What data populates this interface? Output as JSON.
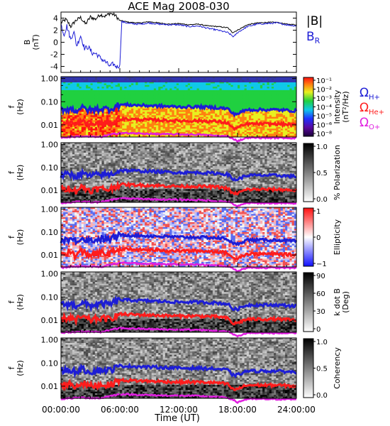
{
  "chart_data": {
    "type": "spectrogram",
    "title": "ACE Mag 2008-030",
    "xlabel": "Time (UT)",
    "x_tick_labels": [
      "00:00:00",
      "06:00:00",
      "12:00:00",
      "18:00:00",
      "24:00:00"
    ],
    "x_range_hours": [
      0,
      24
    ],
    "line_series": {
      "H+": [
        [
          0,
          0.045
        ],
        [
          1,
          0.05
        ],
        [
          1.5,
          0.04
        ],
        [
          2,
          0.055
        ],
        [
          3,
          0.042
        ],
        [
          4,
          0.05
        ],
        [
          5,
          0.048
        ],
        [
          5.5,
          0.06
        ],
        [
          6,
          0.075
        ],
        [
          8,
          0.07
        ],
        [
          10,
          0.065
        ],
        [
          12,
          0.06
        ],
        [
          14,
          0.06
        ],
        [
          16,
          0.055
        ],
        [
          17,
          0.05
        ],
        [
          17.5,
          0.03
        ],
        [
          18,
          0.03
        ],
        [
          19,
          0.045
        ],
        [
          22,
          0.045
        ],
        [
          24,
          0.04
        ]
      ],
      "He+": [
        [
          0,
          0.011
        ],
        [
          1,
          0.013
        ],
        [
          1.5,
          0.009
        ],
        [
          2,
          0.014
        ],
        [
          3,
          0.01
        ],
        [
          4,
          0.012
        ],
        [
          5,
          0.011
        ],
        [
          5.5,
          0.015
        ],
        [
          6,
          0.018
        ],
        [
          8,
          0.017
        ],
        [
          10,
          0.016
        ],
        [
          12,
          0.015
        ],
        [
          14,
          0.015
        ],
        [
          16,
          0.014
        ],
        [
          17,
          0.012
        ],
        [
          17.5,
          0.007
        ],
        [
          18,
          0.0075
        ],
        [
          19,
          0.011
        ],
        [
          22,
          0.011
        ],
        [
          24,
          0.01
        ]
      ],
      "O+": [
        [
          0,
          0.0028
        ],
        [
          2,
          0.0032
        ],
        [
          4,
          0.003
        ],
        [
          6,
          0.0045
        ],
        [
          10,
          0.004
        ],
        [
          14,
          0.0038
        ],
        [
          17,
          0.0032
        ],
        [
          18,
          0.002
        ],
        [
          19,
          0.0028
        ],
        [
          24,
          0.0027
        ]
      ]
    },
    "panels": [
      {
        "type": "line",
        "ylabel_lines": [
          "B",
          "(nT)"
        ],
        "y_ticks": [
          -4,
          -2,
          0,
          2,
          4
        ],
        "ylim": [
          -5,
          5
        ],
        "legend": [
          {
            "text": "|B|",
            "color": "#000000"
          },
          {
            "text": "B",
            "sub": "R",
            "color": "#1d1dd6"
          }
        ],
        "series": [
          {
            "name": "|B|",
            "color": "#000000",
            "points": [
              [
                0,
                3.2
              ],
              [
                0.5,
                3.8
              ],
              [
                1,
                2.6
              ],
              [
                1.5,
                3.6
              ],
              [
                2,
                4.1
              ],
              [
                2.5,
                3.0
              ],
              [
                3,
                4.2
              ],
              [
                3.5,
                3.8
              ],
              [
                4,
                4.6
              ],
              [
                4.5,
                4.3
              ],
              [
                5,
                4.8
              ],
              [
                5.5,
                4.5
              ],
              [
                6,
                3.6
              ],
              [
                7,
                3.3
              ],
              [
                8,
                3.2
              ],
              [
                9,
                3.4
              ],
              [
                10,
                3.2
              ],
              [
                11,
                3.0
              ],
              [
                12,
                3.1
              ],
              [
                13,
                2.9
              ],
              [
                14,
                3.0
              ],
              [
                15,
                2.7
              ],
              [
                16,
                2.6
              ],
              [
                17,
                2.4
              ],
              [
                17.5,
                1.6
              ],
              [
                18,
                2.0
              ],
              [
                19,
                2.9
              ],
              [
                20,
                3.2
              ],
              [
                21,
                3.3
              ],
              [
                22,
                3.3
              ],
              [
                23,
                3.0
              ],
              [
                24,
                2.9
              ]
            ]
          },
          {
            "name": "B_R",
            "color": "#1d1dd6",
            "points": [
              [
                0,
                3.0
              ],
              [
                0.3,
                1.2
              ],
              [
                0.6,
                2.7
              ],
              [
                1,
                0.4
              ],
              [
                1.3,
                1.9
              ],
              [
                1.6,
                -0.6
              ],
              [
                2,
                1.1
              ],
              [
                2.4,
                -1.0
              ],
              [
                2.8,
                -0.8
              ],
              [
                3.2,
                -1.8
              ],
              [
                3.6,
                -1.9
              ],
              [
                4,
                -2.6
              ],
              [
                4.5,
                -3.2
              ],
              [
                5,
                -4.0
              ],
              [
                5.3,
                -3.6
              ],
              [
                5.7,
                -4.1
              ],
              [
                6,
                -3.8
              ],
              [
                6.2,
                3.4
              ],
              [
                7,
                3.1
              ],
              [
                8,
                3.0
              ],
              [
                9,
                3.2
              ],
              [
                10,
                3.0
              ],
              [
                11,
                2.9
              ],
              [
                12,
                2.9
              ],
              [
                13,
                2.6
              ],
              [
                14,
                2.7
              ],
              [
                15,
                2.3
              ],
              [
                16,
                2.0
              ],
              [
                17,
                1.6
              ],
              [
                17.6,
                0.9
              ],
              [
                18,
                1.6
              ],
              [
                19,
                2.6
              ],
              [
                20,
                3.0
              ],
              [
                21,
                3.1
              ],
              [
                22,
                3.2
              ],
              [
                23,
                2.9
              ],
              [
                24,
                2.7
              ]
            ]
          }
        ]
      },
      {
        "type": "spectrogram",
        "ylabel_lines": [
          "f",
          "(Hz)"
        ],
        "y_tick_labels": [
          "1.00",
          "0.10",
          "0.01"
        ],
        "ylim_hz": [
          0.003,
          1.2
        ],
        "yscale": "log",
        "colorbar_title": "Intensity",
        "colorbar_unit": "(nT²/Hz)",
        "colorbar_ticks": [
          "10⁻¹",
          "10⁻²",
          "10⁻³",
          "10⁻⁴",
          "10⁻⁵",
          "10⁻⁶",
          "10⁻⁸"
        ],
        "colormap": "rainbow",
        "lines_legend": [
          {
            "symbol": "Ω",
            "sub": "H+",
            "color": "#1d1dd6"
          },
          {
            "symbol": "Ω",
            "sub": "He+",
            "color": "#ff1c1c"
          },
          {
            "symbol": "Ω",
            "sub": "O+",
            "color": "#e01ee0"
          }
        ]
      },
      {
        "type": "spectrogram",
        "ylabel_lines": [
          "f",
          "(Hz)"
        ],
        "y_tick_labels": [
          "1.00",
          "0.10",
          "0.01"
        ],
        "ylim_hz": [
          0.003,
          1.2
        ],
        "yscale": "log",
        "colorbar_title": "% Polarization",
        "colorbar_unit": "",
        "colorbar_ticks": [
          "1.0",
          "0.5",
          "0.0"
        ],
        "colormap": "gray"
      },
      {
        "type": "spectrogram",
        "ylabel_lines": [
          "f",
          "(Hz)"
        ],
        "y_tick_labels": [
          "1.00",
          "0.10",
          "0.01"
        ],
        "ylim_hz": [
          0.003,
          1.2
        ],
        "yscale": "log",
        "colorbar_title": "Ellipticity",
        "colorbar_unit": "",
        "colorbar_ticks": [
          "1",
          "0",
          "−1"
        ],
        "colormap": "bwr"
      },
      {
        "type": "spectrogram",
        "ylabel_lines": [
          "f",
          "(Hz)"
        ],
        "y_tick_labels": [
          "1.00",
          "0.10",
          "0.01"
        ],
        "ylim_hz": [
          0.003,
          1.2
        ],
        "yscale": "log",
        "colorbar_title": "k dot B",
        "colorbar_unit": "(Deg)",
        "colorbar_ticks": [
          "90",
          "60",
          "30",
          "0"
        ],
        "colormap": "gray"
      },
      {
        "type": "spectrogram",
        "ylabel_lines": [
          "f",
          "(Hz)"
        ],
        "y_tick_labels": [
          "1.00",
          "0.10",
          "0.01"
        ],
        "ylim_hz": [
          0.003,
          1.2
        ],
        "yscale": "log",
        "colorbar_title": "Coherency",
        "colorbar_unit": "",
        "colorbar_ticks": [
          "1.0",
          "0.5",
          "0.0"
        ],
        "colormap": "gray"
      }
    ]
  }
}
